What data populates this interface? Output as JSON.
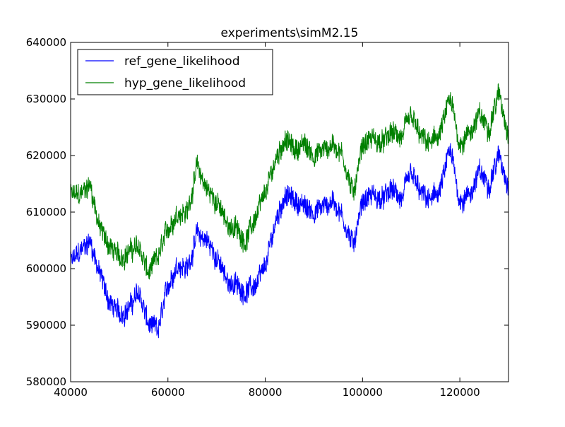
{
  "chart_data": {
    "type": "line",
    "title": "experiments\\simM2.15",
    "xlabel": "",
    "ylabel": "",
    "xlim": [
      40000,
      130000
    ],
    "ylim": [
      580000,
      640000
    ],
    "xticks": [
      40000,
      60000,
      80000,
      100000,
      120000
    ],
    "yticks": [
      580000,
      590000,
      600000,
      610000,
      620000,
      630000,
      640000
    ],
    "xtick_labels": [
      "40000",
      "60000",
      "80000",
      "100000",
      "120000"
    ],
    "ytick_labels": [
      "580000",
      "590000",
      "600000",
      "610000",
      "620000",
      "630000",
      "640000"
    ],
    "grid": false,
    "legend_position": "top-left",
    "x": [
      40000,
      42000,
      44000,
      46000,
      48000,
      50000,
      52000,
      54000,
      56000,
      58000,
      60000,
      62000,
      64000,
      66000,
      68000,
      70000,
      72000,
      74000,
      76000,
      78000,
      80000,
      82000,
      84000,
      86000,
      88000,
      90000,
      92000,
      94000,
      96000,
      98000,
      100000,
      102000,
      104000,
      106000,
      108000,
      110000,
      112000,
      114000,
      116000,
      118000,
      120000,
      122000,
      124000,
      126000,
      128000,
      130000
    ],
    "series": [
      {
        "name": "ref_gene_likelihood",
        "color": "#0000ff",
        "values": [
          601000,
          603000,
          605000,
          599000,
          594000,
          592000,
          593000,
          596000,
          590000,
          589000,
          597000,
          601000,
          600000,
          606000,
          605000,
          602000,
          598000,
          597000,
          596000,
          597000,
          600000,
          608000,
          613000,
          612000,
          611000,
          610000,
          611000,
          612000,
          609000,
          604000,
          612000,
          613000,
          612000,
          614000,
          612000,
          617000,
          613000,
          612000,
          614000,
          621000,
          612000,
          613000,
          617000,
          615000,
          620000,
          615000
        ]
      },
      {
        "name": "hyp_gene_likelihood",
        "color": "#008000",
        "values": [
          613000,
          613000,
          615000,
          607000,
          604000,
          602000,
          603000,
          604000,
          599000,
          602000,
          607000,
          610000,
          610000,
          618000,
          614000,
          612000,
          608000,
          607000,
          605000,
          609000,
          613000,
          619000,
          623000,
          621000,
          622000,
          620000,
          621000,
          622000,
          620000,
          613000,
          622000,
          623000,
          622000,
          624000,
          623000,
          627000,
          623000,
          622000,
          624000,
          630000,
          622000,
          624000,
          627000,
          625000,
          631000,
          624000
        ]
      }
    ]
  }
}
